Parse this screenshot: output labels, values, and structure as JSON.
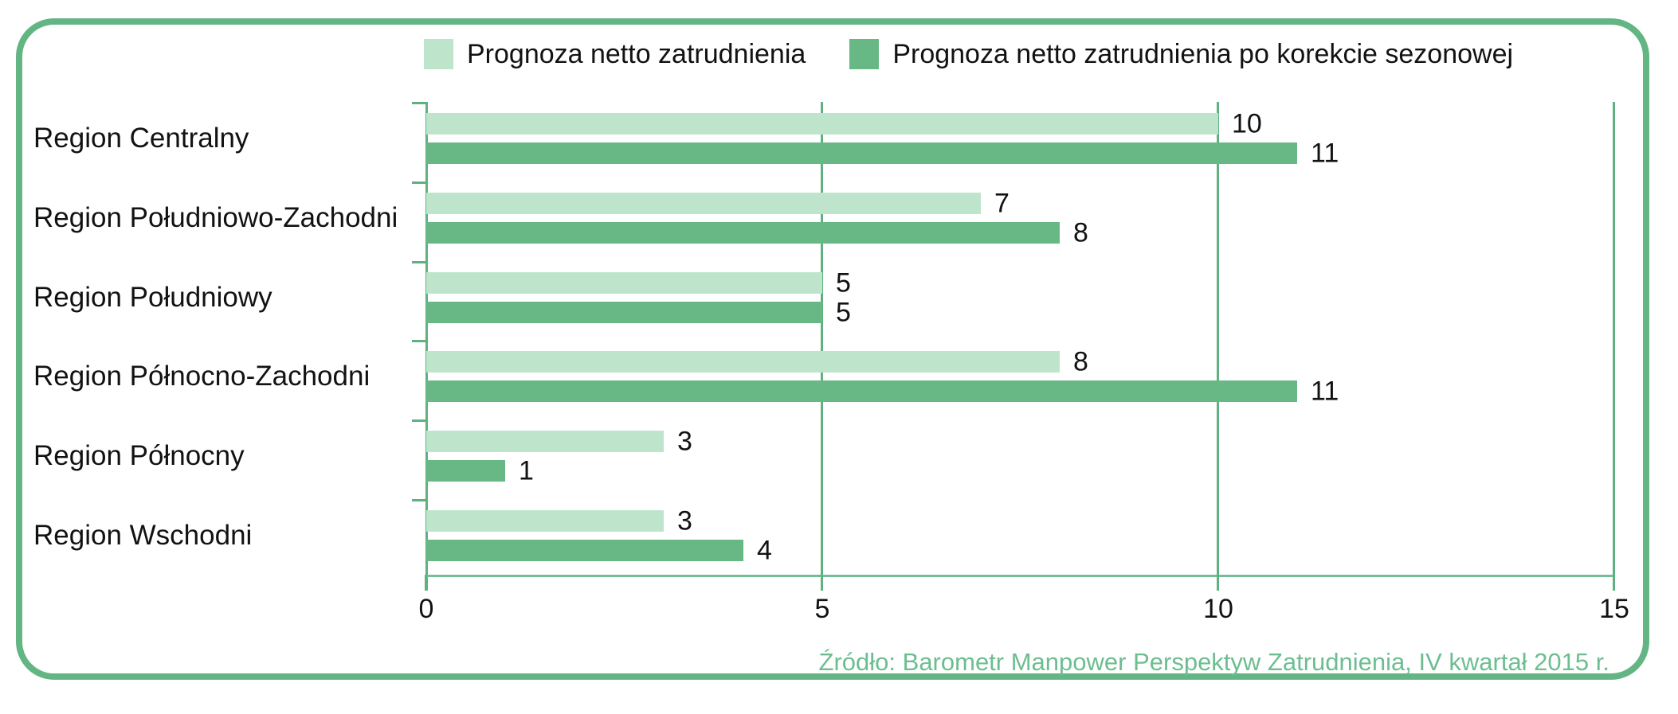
{
  "legend": {
    "items": [
      {
        "label": "Prognoza netto zatrudnienia",
        "color": "#bee5cc"
      },
      {
        "label": "Prognoza netto zatrudnienia po korekcie sezonowej",
        "color": "#68b886"
      }
    ]
  },
  "source_note": "Źródło: Barometr Manpower Perspektyw Zatrudnienia, IV kwartał 2015 r.",
  "chart_data": {
    "type": "bar",
    "orientation": "horizontal",
    "title": "",
    "xlabel": "",
    "ylabel": "",
    "categories": [
      "Region Centralny",
      "Region Południowo-Zachodni",
      "Region Południowy",
      "Region Północno-Zachodni",
      "Region Północny",
      "Region Wschodni"
    ],
    "series": [
      {
        "name": "Prognoza netto zatrudnienia",
        "color": "#bee5cc",
        "values": [
          10,
          7,
          5,
          8,
          3,
          3
        ]
      },
      {
        "name": "Prognoza netto zatrudnienia po korekcie sezonowej",
        "color": "#68b886",
        "values": [
          11,
          8,
          5,
          11,
          1,
          4
        ]
      }
    ],
    "xlim": [
      0,
      15
    ],
    "xticks": [
      0,
      5,
      10,
      15
    ],
    "grid": "vertical gridlines at 5, 10, 15",
    "legend_position": "top",
    "value_labels": "right of bar end",
    "accent_color": "#63b583"
  }
}
